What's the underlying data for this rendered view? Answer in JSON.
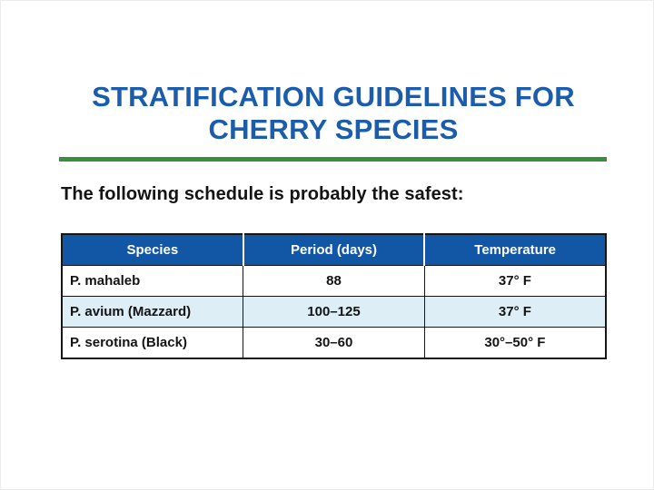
{
  "slide": {
    "title_line1": "STRATIFICATION GUIDELINES FOR",
    "title_line2": "CHERRY SPECIES",
    "subtitle": "The following schedule is probably the safest:"
  },
  "colors": {
    "title_blue": "#1b5cab",
    "header_blue": "#1257a5",
    "divider_green": "#3a8c3e",
    "alt_row_blue": "#ddeef6"
  },
  "chart_data": {
    "type": "table",
    "title": "Stratification Guidelines for Cherry Species",
    "columns": [
      "Species",
      "Period (days)",
      "Temperature"
    ],
    "rows": [
      [
        "P. mahaleb",
        "88",
        "37° F"
      ],
      [
        "P. avium (Mazzard)",
        "100–125",
        "37° F"
      ],
      [
        "P. serotina (Black)",
        "30–60",
        "30°–50° F"
      ]
    ]
  },
  "table": {
    "headers": [
      "Species",
      "Period (days)",
      "Temperature"
    ],
    "rows": [
      [
        "P. mahaleb",
        "88",
        "37° F"
      ],
      [
        "P. avium (Mazzard)",
        "100–125",
        "37° F"
      ],
      [
        "P. serotina (Black)",
        "30–60",
        "30°–50° F"
      ]
    ]
  }
}
